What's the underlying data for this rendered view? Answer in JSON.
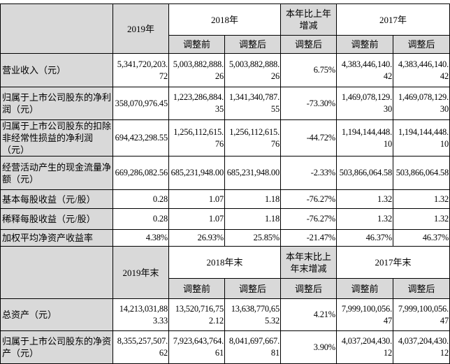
{
  "section1": {
    "header": {
      "y2019": "2019年",
      "y2018": "2018年",
      "change": "本年比上年增减",
      "y2017": "2017年",
      "before": "调整前",
      "after": "调整后"
    },
    "rows": [
      {
        "label": "营业收入（元）",
        "values": [
          "5,341,720,203.72",
          "5,003,882,888.26",
          "5,003,882,888.26",
          "6.75%",
          "4,383,446,140.42",
          "4,383,446,140.42"
        ]
      },
      {
        "label": "归属于上市公司股东的净利润（元）",
        "values": [
          "358,070,976.45",
          "1,223,286,884.35",
          "1,341,340,787.55",
          "-73.30%",
          "1,469,078,129.30",
          "1,469,078,129.30"
        ]
      },
      {
        "label": "归属于上市公司股东的扣除非经常性损益的净利润（元）",
        "values": [
          "694,423,298.55",
          "1,256,112,615.76",
          "1,256,112,615.76",
          "-44.72%",
          "1,194,144,448.10",
          "1,194,144,448.10"
        ]
      },
      {
        "label": "经营活动产生的现金流量净额（元）",
        "values": [
          "669,286,082.56",
          "685,231,948.00",
          "685,231,948.00",
          "-2.33%",
          "503,866,064.58",
          "503,866,064.58"
        ]
      },
      {
        "label": "基本每股收益（元/股）",
        "values": [
          "0.28",
          "1.07",
          "1.18",
          "-76.27%",
          "1.32",
          "1.32"
        ]
      },
      {
        "label": "稀释每股收益（元/股）",
        "values": [
          "0.28",
          "1.07",
          "1.18",
          "-76.27%",
          "1.32",
          "1.32"
        ]
      },
      {
        "label": "加权平均净资产收益率",
        "values": [
          "4.38%",
          "26.93%",
          "25.85%",
          "-21.47%",
          "46.37%",
          "46.37%"
        ]
      }
    ]
  },
  "section2": {
    "header": {
      "y2019": "2019年末",
      "y2018": "2018年末",
      "change": "本年末比上年末增减",
      "y2017": "2017年末",
      "before": "调整前",
      "after": "调整后"
    },
    "rows": [
      {
        "label": "总资产（元）",
        "values": [
          "14,213,031,883.33",
          "13,520,716,752.12",
          "13,638,770,655.32",
          "4.21%",
          "7,999,100,056.47",
          "7,999,100,056.47"
        ]
      },
      {
        "label": "归属于上市公司股东的净资产（元）",
        "values": [
          "8,355,257,507.62",
          "7,923,643,764.61",
          "8,041,697,667.81",
          "3.90%",
          "4,037,204,430.12",
          "4,037,204,430.12"
        ]
      }
    ]
  }
}
